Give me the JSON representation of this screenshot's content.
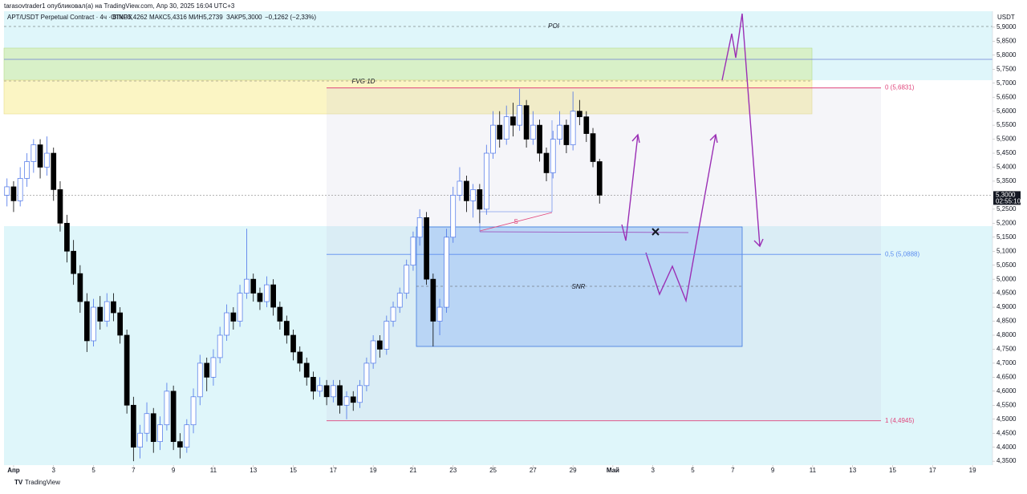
{
  "chart_data": {
    "type": "candlestick",
    "header": "tarasovtrader1 опубликовал(а) на TradingView.com, Апр 30, 2025 16:04 UTC+3",
    "title": "APT/USDT Perpetual Contract · 4ч · BINGX",
    "ohlc_labels": [
      "ОТКР5,4262",
      "МАКС5,4316",
      "МИН5,2739",
      "ЗАКР5,3000",
      "−0,1262 (−2,33%)"
    ],
    "axis_unit": "USDT",
    "footer": "TradingView",
    "annotations": [
      "POI",
      "FVG 1D",
      "SNR",
      "S"
    ],
    "fib_levels": [
      {
        "value": 5.6831,
        "label": "0 (5,6831)",
        "color": "#e0457b"
      },
      {
        "value": 5.0888,
        "label": "0,5 (5,0888)",
        "color": "#5b8def"
      },
      {
        "value": 4.4945,
        "label": "1 (4,4945)",
        "color": "#e0457b"
      }
    ],
    "current_price": {
      "value": 5.3,
      "label": "5,3000"
    },
    "countdown": "02:55:10",
    "up_color": "#4a73e8",
    "down_color": "#000000",
    "xlim": [
      -0.48,
      49.0
    ],
    "ylim": [
      4.336,
      5.957
    ],
    "xticks": [
      {
        "value": 0,
        "label": "Апр"
      },
      {
        "value": 2,
        "label": "3"
      },
      {
        "value": 4,
        "label": "5"
      },
      {
        "value": 6,
        "label": "7"
      },
      {
        "value": 8,
        "label": "9"
      },
      {
        "value": 10,
        "label": "11"
      },
      {
        "value": 12,
        "label": "13"
      },
      {
        "value": 14,
        "label": "15"
      },
      {
        "value": 16,
        "label": "17"
      },
      {
        "value": 18,
        "label": "19"
      },
      {
        "value": 20,
        "label": "21"
      },
      {
        "value": 22,
        "label": "23"
      },
      {
        "value": 24,
        "label": "25"
      },
      {
        "value": 26,
        "label": "27"
      },
      {
        "value": 28,
        "label": "29"
      },
      {
        "value": 30,
        "label": "Май"
      },
      {
        "value": 32,
        "label": "3"
      },
      {
        "value": 34,
        "label": "5"
      },
      {
        "value": 36,
        "label": "7"
      },
      {
        "value": 38,
        "label": "9"
      },
      {
        "value": 40,
        "label": "11"
      },
      {
        "value": 42,
        "label": "13"
      },
      {
        "value": 44,
        "label": "15"
      },
      {
        "value": 46,
        "label": "17"
      },
      {
        "value": 48,
        "label": "19"
      }
    ],
    "yticks": [
      {
        "value": 5.9,
        "label": "5,9000"
      },
      {
        "value": 5.85,
        "label": "5,8500"
      },
      {
        "value": 5.8,
        "label": "5,8000"
      },
      {
        "value": 5.75,
        "label": "5,7500"
      },
      {
        "value": 5.7,
        "label": "5,7000"
      },
      {
        "value": 5.65,
        "label": "5,6500"
      },
      {
        "value": 5.6,
        "label": "5,6000"
      },
      {
        "value": 5.55,
        "label": "5,5500"
      },
      {
        "value": 5.5,
        "label": "5,5000"
      },
      {
        "value": 5.45,
        "label": "5,4500"
      },
      {
        "value": 5.4,
        "label": "5,4000"
      },
      {
        "value": 5.35,
        "label": "5,3500"
      },
      {
        "value": 5.25,
        "label": "5,2500"
      },
      {
        "value": 5.2,
        "label": "5,2000"
      },
      {
        "value": 5.15,
        "label": "5,1500"
      },
      {
        "value": 5.1,
        "label": "5,1000"
      },
      {
        "value": 5.05,
        "label": "5,0500"
      },
      {
        "value": 5.0,
        "label": "5,0000"
      },
      {
        "value": 4.95,
        "label": "4,9500"
      },
      {
        "value": 4.9,
        "label": "4,9000"
      },
      {
        "value": 4.85,
        "label": "4,8500"
      },
      {
        "value": 4.8,
        "label": "4,8000"
      },
      {
        "value": 4.75,
        "label": "4,7500"
      },
      {
        "value": 4.7,
        "label": "4,7000"
      },
      {
        "value": 4.65,
        "label": "4,6500"
      },
      {
        "value": 4.6,
        "label": "4,6000"
      },
      {
        "value": 4.55,
        "label": "4,5500"
      },
      {
        "value": 4.5,
        "label": "4,5000"
      },
      {
        "value": 4.45,
        "label": "4,4500"
      },
      {
        "value": 4.4,
        "label": "4,4000"
      },
      {
        "value": 4.35,
        "label": "4,3500"
      }
    ],
    "x": [
      -0.33,
      0,
      0.33,
      0.67,
      1,
      1.33,
      1.67,
      2,
      2.33,
      2.67,
      3,
      3.33,
      3.67,
      4,
      4.33,
      4.67,
      5,
      5.33,
      5.67,
      6,
      6.33,
      6.67,
      7,
      7.33,
      7.67,
      8,
      8.33,
      8.67,
      9,
      9.33,
      9.67,
      10,
      10.33,
      10.67,
      11,
      11.33,
      11.67,
      12,
      12.33,
      12.67,
      13,
      13.33,
      13.67,
      14,
      14.33,
      14.67,
      15,
      15.33,
      15.67,
      16,
      16.33,
      16.67,
      17,
      17.33,
      17.67,
      18,
      18.33,
      18.67,
      19,
      19.33,
      19.67,
      20,
      20.33,
      20.67,
      21,
      21.33,
      21.67,
      22,
      22.33,
      22.67,
      23,
      23.33,
      23.67,
      24,
      24.33,
      24.67,
      25,
      25.33,
      25.67,
      26,
      26.33,
      26.67,
      27,
      27.33,
      27.67,
      28,
      28.33,
      28.67,
      29,
      29.33
    ],
    "candles": [
      [
        5.3,
        5.36,
        5.26,
        5.33
      ],
      [
        5.33,
        5.35,
        5.24,
        5.28
      ],
      [
        5.28,
        5.4,
        5.26,
        5.36
      ],
      [
        5.36,
        5.45,
        5.33,
        5.42
      ],
      [
        5.42,
        5.5,
        5.38,
        5.48
      ],
      [
        5.48,
        5.5,
        5.36,
        5.4
      ],
      [
        5.4,
        5.51,
        5.37,
        5.45
      ],
      [
        5.45,
        5.47,
        5.28,
        5.32
      ],
      [
        5.32,
        5.35,
        5.17,
        5.2
      ],
      [
        5.2,
        5.23,
        5.06,
        5.1
      ],
      [
        5.1,
        5.14,
        4.98,
        5.02
      ],
      [
        5.02,
        5.05,
        4.88,
        4.92
      ],
      [
        4.92,
        4.95,
        4.74,
        4.78
      ],
      [
        4.78,
        4.93,
        4.76,
        4.9
      ],
      [
        4.9,
        4.94,
        4.82,
        4.85
      ],
      [
        4.85,
        4.95,
        4.83,
        4.92
      ],
      [
        4.92,
        4.95,
        4.85,
        4.88
      ],
      [
        4.88,
        4.9,
        4.77,
        4.8
      ],
      [
        4.8,
        4.82,
        4.52,
        4.55
      ],
      [
        4.55,
        4.58,
        4.35,
        4.4
      ],
      [
        4.4,
        4.48,
        4.36,
        4.45
      ],
      [
        4.45,
        4.56,
        4.42,
        4.52
      ],
      [
        4.52,
        4.54,
        4.38,
        4.42
      ],
      [
        4.42,
        4.51,
        4.39,
        4.48
      ],
      [
        4.48,
        4.63,
        4.46,
        4.6
      ],
      [
        4.6,
        4.62,
        4.39,
        4.42
      ],
      [
        4.42,
        4.45,
        4.36,
        4.4
      ],
      [
        4.4,
        4.5,
        4.38,
        4.48
      ],
      [
        4.48,
        4.61,
        4.45,
        4.58
      ],
      [
        4.58,
        4.73,
        4.55,
        4.7
      ],
      [
        4.7,
        4.72,
        4.6,
        4.65
      ],
      [
        4.65,
        4.75,
        4.62,
        4.72
      ],
      [
        4.72,
        4.83,
        4.7,
        4.8
      ],
      [
        4.8,
        4.91,
        4.78,
        4.88
      ],
      [
        4.88,
        4.9,
        4.82,
        4.85
      ],
      [
        4.85,
        4.98,
        4.83,
        4.95
      ],
      [
        4.95,
        5.18,
        4.93,
        5.0
      ],
      [
        5.0,
        5.02,
        4.92,
        4.95
      ],
      [
        4.95,
        4.97,
        4.89,
        4.92
      ],
      [
        4.92,
        5.01,
        4.9,
        4.98
      ],
      [
        4.98,
        5.0,
        4.87,
        4.9
      ],
      [
        4.9,
        4.92,
        4.82,
        4.85
      ],
      [
        4.85,
        4.87,
        4.77,
        4.8
      ],
      [
        4.8,
        4.82,
        4.71,
        4.74
      ],
      [
        4.74,
        4.76,
        4.67,
        4.7
      ],
      [
        4.7,
        4.72,
        4.62,
        4.65
      ],
      [
        4.65,
        4.67,
        4.57,
        4.6
      ],
      [
        4.6,
        4.65,
        4.58,
        4.62
      ],
      [
        4.62,
        4.64,
        4.55,
        4.58
      ],
      [
        4.58,
        4.64,
        4.56,
        4.62
      ],
      [
        4.62,
        4.64,
        4.52,
        4.55
      ],
      [
        4.55,
        4.6,
        4.5,
        4.58
      ],
      [
        4.58,
        4.6,
        4.53,
        4.56
      ],
      [
        4.56,
        4.64,
        4.54,
        4.62
      ],
      [
        4.62,
        4.72,
        4.6,
        4.7
      ],
      [
        4.7,
        4.8,
        4.68,
        4.78
      ],
      [
        4.78,
        4.8,
        4.72,
        4.75
      ],
      [
        4.75,
        4.87,
        4.73,
        4.85
      ],
      [
        4.85,
        4.92,
        4.83,
        4.9
      ],
      [
        4.9,
        4.97,
        4.88,
        4.95
      ],
      [
        4.95,
        5.07,
        4.93,
        5.05
      ],
      [
        5.05,
        5.17,
        5.03,
        5.15
      ],
      [
        5.15,
        5.25,
        5.12,
        5.22
      ],
      [
        5.22,
        5.24,
        4.98,
        5.0
      ],
      [
        5.0,
        5.02,
        4.76,
        4.85
      ],
      [
        4.85,
        4.93,
        4.8,
        4.9
      ],
      [
        4.9,
        5.18,
        4.88,
        5.15
      ],
      [
        5.15,
        5.33,
        5.13,
        5.3
      ],
      [
        5.3,
        5.4,
        5.28,
        5.35
      ],
      [
        5.35,
        5.37,
        5.24,
        5.28
      ],
      [
        5.28,
        5.34,
        5.22,
        5.32
      ],
      [
        5.32,
        5.34,
        5.2,
        5.25
      ],
      [
        5.25,
        5.48,
        5.23,
        5.45
      ],
      [
        5.45,
        5.6,
        5.43,
        5.55
      ],
      [
        5.55,
        5.6,
        5.47,
        5.5
      ],
      [
        5.5,
        5.62,
        5.48,
        5.58
      ],
      [
        5.58,
        5.63,
        5.51,
        5.55
      ],
      [
        5.55,
        5.68,
        5.53,
        5.62
      ],
      [
        5.62,
        5.64,
        5.47,
        5.5
      ],
      [
        5.5,
        5.6,
        5.48,
        5.55
      ],
      [
        5.55,
        5.57,
        5.42,
        5.45
      ],
      [
        5.45,
        5.47,
        5.35,
        5.38
      ],
      [
        5.38,
        5.53,
        5.36,
        5.5
      ],
      [
        5.5,
        5.6,
        5.48,
        5.55
      ],
      [
        5.55,
        5.57,
        5.45,
        5.48
      ],
      [
        5.48,
        5.67,
        5.46,
        5.6
      ],
      [
        5.6,
        5.64,
        5.55,
        5.58
      ],
      [
        5.58,
        5.6,
        5.49,
        5.52
      ],
      [
        5.52,
        5.54,
        5.4,
        5.42
      ],
      [
        5.42,
        5.43,
        5.27,
        5.3
      ]
    ]
  }
}
